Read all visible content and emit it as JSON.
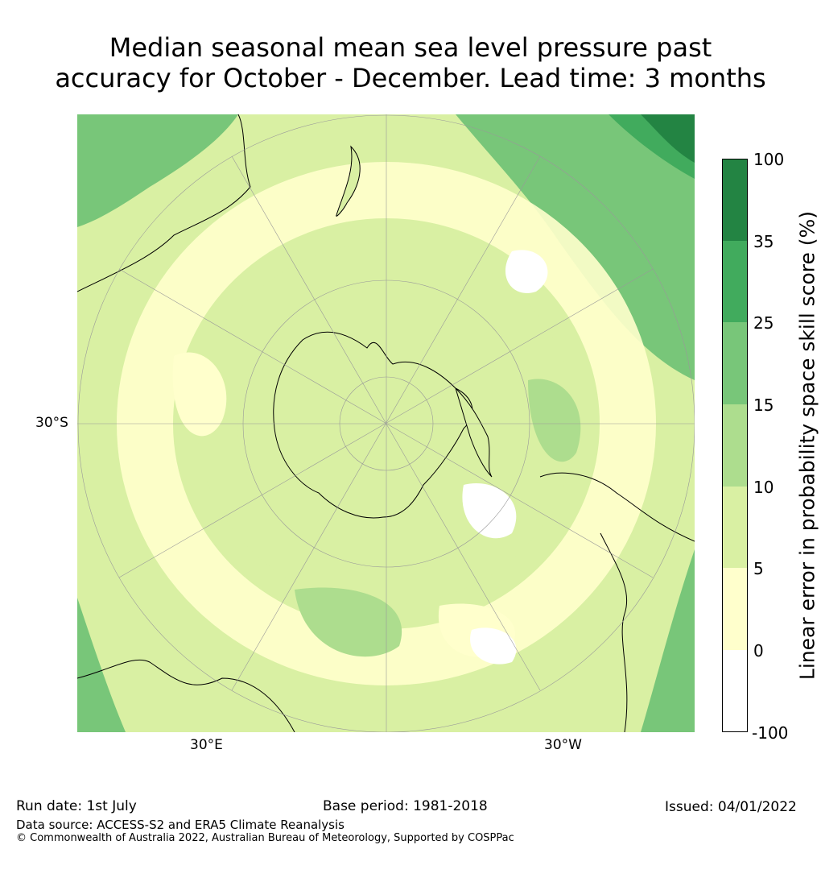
{
  "title": {
    "line1": "Median seasonal mean sea level pressure past",
    "line2": "accuracy for October - December. Lead time: 3 months"
  },
  "map": {
    "lat_label": "30°S",
    "lon_labels": [
      "30°E",
      "30°W"
    ],
    "projection": "south polar stereographic",
    "colors": {
      "ocean_low": "#ffffcc",
      "ocean_mid": "#d9f0a3",
      "ocean_high": "#addd8e",
      "coast": "#000000"
    }
  },
  "colorbar": {
    "label": "Linear error in probability space skill score (%)",
    "ticks": [
      "100",
      "35",
      "25",
      "15",
      "10",
      "5",
      "0",
      "-100"
    ],
    "colors": [
      "#238443",
      "#41ab5d",
      "#78c679",
      "#addd8e",
      "#d9f0a3",
      "#ffffcc",
      "#ffffff"
    ]
  },
  "footer": {
    "run_date": "Run date: 1st July",
    "base_period": "Base period: 1981-2018",
    "issued": "Issued: 04/01/2022",
    "data_source": "Data source: ACCESS-S2 and ERA5 Climate Reanalysis",
    "copyright": "© Commonwealth of Australia 2022, Australian Bureau of Meteorology, Supported by COSPPac"
  }
}
